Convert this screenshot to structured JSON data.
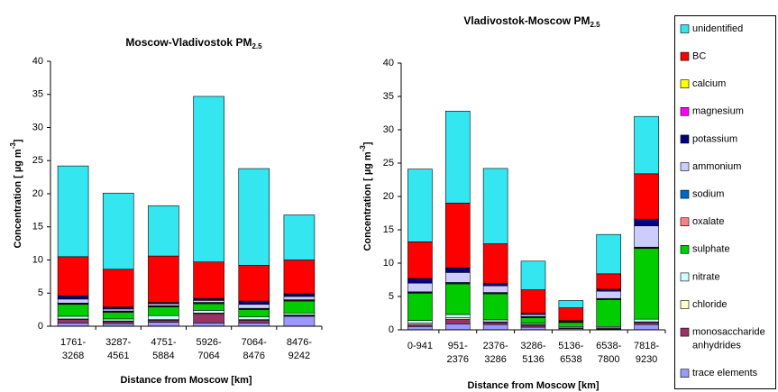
{
  "chart_data": [
    {
      "type": "stacked_bar",
      "title": "Moscow-Vladivostok PM",
      "title_subscript": "2.5",
      "ylabel": "Concentration [  µg m",
      "ylabel_superscript": "-3",
      "ylabel_end": "]",
      "xlabel": "Distance from Moscow [km]",
      "categories": [
        [
          "1761-",
          "3268"
        ],
        [
          "3287-",
          "4561"
        ],
        [
          "4751-",
          "5884"
        ],
        [
          "5926-",
          "7064"
        ],
        [
          "7064-",
          "8476"
        ],
        [
          "8476-",
          "9242"
        ]
      ],
      "ylim": [
        0,
        40
      ],
      "yticks": [
        0,
        5,
        10,
        15,
        20,
        25,
        30,
        35,
        40
      ],
      "series": [
        {
          "name": "trace elements",
          "color": "#9999ff",
          "values": [
            0.5,
            0.4,
            0.6,
            0.5,
            0.5,
            1.5
          ]
        },
        {
          "name": "monosaccharide anhydrides",
          "color": "#993366",
          "values": [
            0.5,
            0.3,
            0.3,
            1.4,
            0.4,
            0.1
          ]
        },
        {
          "name": "chloride",
          "color": "#ffffcc",
          "values": [
            0.1,
            0.1,
            0.1,
            0.1,
            0.1,
            0.1
          ]
        },
        {
          "name": "nitrate",
          "color": "#ccffff",
          "values": [
            0.4,
            0.3,
            0.6,
            0.4,
            0.4,
            0.3
          ]
        },
        {
          "name": "sulphate",
          "color": "#00cc00",
          "values": [
            1.8,
            1.0,
            1.3,
            1.0,
            1.1,
            1.8
          ]
        },
        {
          "name": "oxalate",
          "color": "#ff8080",
          "values": [
            0.1,
            0.1,
            0.1,
            0.1,
            0.1,
            0.1
          ]
        },
        {
          "name": "sodium",
          "color": "#0066cc",
          "values": [
            0.1,
            0.1,
            0.1,
            0.1,
            0.1,
            0.1
          ]
        },
        {
          "name": "ammonium",
          "color": "#ccccff",
          "values": [
            0.6,
            0.3,
            0.3,
            0.3,
            0.6,
            0.5
          ]
        },
        {
          "name": "potassium",
          "color": "#000080",
          "values": [
            0.5,
            0.3,
            0.2,
            0.3,
            0.5,
            0.4
          ]
        },
        {
          "name": "magnesium",
          "color": "#ff00ff",
          "values": [
            0,
            0,
            0,
            0,
            0,
            0
          ]
        },
        {
          "name": "calcium",
          "color": "#ffff00",
          "values": [
            0,
            0,
            0,
            0,
            0,
            0
          ]
        },
        {
          "name": "BC",
          "color": "#ff0000",
          "values": [
            5.9,
            5.7,
            7.0,
            5.5,
            5.4,
            5.1
          ]
        },
        {
          "name": "unidentified",
          "color": "#33e6f0",
          "values": [
            13.7,
            11.5,
            7.6,
            25.0,
            14.6,
            6.8
          ]
        }
      ]
    },
    {
      "type": "stacked_bar",
      "title": "Vladivostok-Moscow PM",
      "title_subscript": "2.5",
      "ylabel": "Concentration [  µg m",
      "ylabel_superscript": "-3",
      "ylabel_end": "]",
      "xlabel": "Distance from Moscow [km]",
      "categories": [
        [
          "0-941"
        ],
        [
          "951-",
          "2376"
        ],
        [
          "2376-",
          "3286"
        ],
        [
          "3286-",
          "5136"
        ],
        [
          "5136-",
          "6538"
        ],
        [
          "6538-",
          "7800"
        ],
        [
          "7818-",
          "9230"
        ]
      ],
      "ylim": [
        0,
        40
      ],
      "yticks": [
        0,
        5,
        10,
        15,
        20,
        25,
        30,
        35,
        40
      ],
      "series": [
        {
          "name": "trace elements",
          "color": "#9999ff",
          "values": [
            0.5,
            0.9,
            0.8,
            0.4,
            0.2,
            0.1,
            0.8
          ]
        },
        {
          "name": "monosaccharide anhydrides",
          "color": "#993366",
          "values": [
            0.3,
            0.7,
            0.3,
            0.3,
            0.1,
            0.1,
            0.3
          ]
        },
        {
          "name": "chloride",
          "color": "#ffffcc",
          "values": [
            0.2,
            0.2,
            0.1,
            0.1,
            0,
            0.1,
            0.1
          ]
        },
        {
          "name": "nitrate",
          "color": "#ccffff",
          "values": [
            0.4,
            0.5,
            0.3,
            0.2,
            0.2,
            0.2,
            0.4
          ]
        },
        {
          "name": "sulphate",
          "color": "#00cc00",
          "values": [
            4.1,
            4.6,
            3.9,
            0.8,
            0.6,
            4.0,
            10.6
          ]
        },
        {
          "name": "oxalate",
          "color": "#ff8080",
          "values": [
            0.1,
            0.1,
            0.1,
            0.1,
            0,
            0.1,
            0.1
          ]
        },
        {
          "name": "sodium",
          "color": "#0066cc",
          "values": [
            0.1,
            0.1,
            0.1,
            0.1,
            0.1,
            0.1,
            0.1
          ]
        },
        {
          "name": "ammonium",
          "color": "#ccccff",
          "values": [
            1.3,
            1.5,
            1.0,
            0.3,
            0.1,
            1.1,
            3.2
          ]
        },
        {
          "name": "potassium",
          "color": "#000080",
          "values": [
            0.7,
            0.7,
            0.4,
            0.2,
            0.1,
            0.3,
            1.0
          ]
        },
        {
          "name": "magnesium",
          "color": "#ff00ff",
          "values": [
            0,
            0,
            0,
            0,
            0,
            0,
            0
          ]
        },
        {
          "name": "calcium",
          "color": "#ffff00",
          "values": [
            0,
            0,
            0,
            0,
            0,
            0,
            0
          ]
        },
        {
          "name": "BC",
          "color": "#ff0000",
          "values": [
            5.5,
            9.7,
            5.9,
            3.5,
            1.9,
            2.3,
            6.8
          ]
        },
        {
          "name": "unidentified",
          "color": "#33e6f0",
          "values": [
            10.9,
            13.8,
            11.3,
            4.3,
            1.1,
            5.9,
            8.6
          ]
        }
      ]
    }
  ]
}
